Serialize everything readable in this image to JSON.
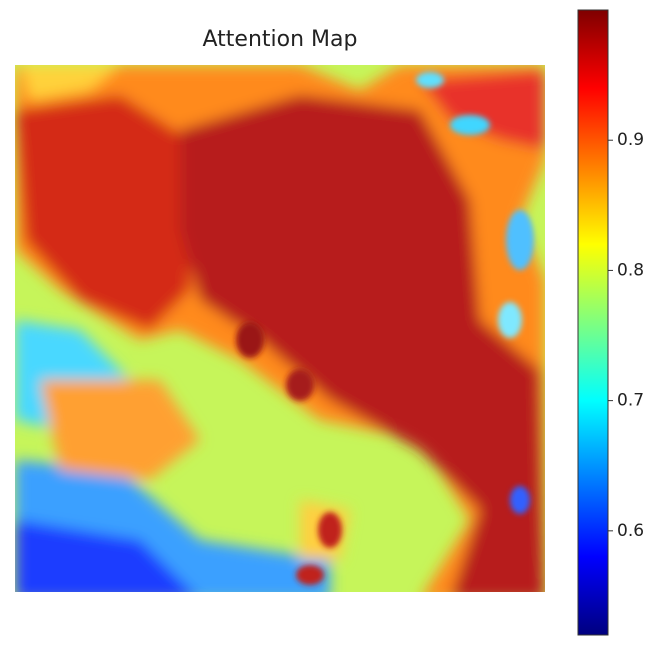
{
  "chart_data": {
    "type": "heatmap",
    "title": "Attention Map",
    "colorbar": {
      "lim": [
        0.52,
        1.0
      ],
      "ticks": [
        0.6,
        0.7,
        0.8,
        0.9
      ],
      "colormap": "jet"
    }
  }
}
